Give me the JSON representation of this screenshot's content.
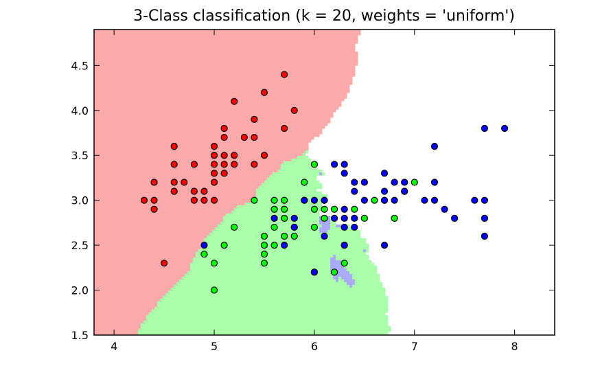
{
  "chart_data": {
    "type": "scatter",
    "title": "3-Class classification (k = 20, weights = 'uniform')",
    "xlabel": "",
    "ylabel": "",
    "xlim": [
      3.8,
      8.4
    ],
    "ylim": [
      1.5,
      4.9
    ],
    "x_ticks": [
      "4",
      "5",
      "6",
      "7",
      "8"
    ],
    "y_ticks": [
      "1.5",
      "2.0",
      "2.5",
      "3.0",
      "3.5",
      "4.0",
      "4.5"
    ],
    "grid": false,
    "legend": "none",
    "region_colors": [
      "#FFAAAA",
      "#AAFFAA",
      "#AAAAFF"
    ],
    "point_colors": [
      "#FF0000",
      "#00FF00",
      "#0000FF"
    ],
    "series": [
      {
        "color": "#FF0000",
        "points": [
          [
            4.3,
            3.0
          ],
          [
            4.4,
            2.9
          ],
          [
            4.4,
            3.0
          ],
          [
            4.4,
            3.2
          ],
          [
            4.5,
            2.3
          ],
          [
            4.6,
            3.1
          ],
          [
            4.6,
            3.2
          ],
          [
            4.6,
            3.4
          ],
          [
            4.6,
            3.6
          ],
          [
            4.7,
            3.2
          ],
          [
            4.8,
            3.0
          ],
          [
            4.8,
            3.1
          ],
          [
            4.8,
            3.4
          ],
          [
            4.9,
            3.0
          ],
          [
            4.9,
            3.1
          ],
          [
            5.0,
            3.0
          ],
          [
            5.0,
            3.2
          ],
          [
            5.0,
            3.3
          ],
          [
            5.0,
            3.4
          ],
          [
            5.0,
            3.5
          ],
          [
            5.0,
            3.6
          ],
          [
            5.1,
            3.3
          ],
          [
            5.1,
            3.4
          ],
          [
            5.1,
            3.5
          ],
          [
            5.1,
            3.7
          ],
          [
            5.1,
            3.8
          ],
          [
            5.2,
            3.4
          ],
          [
            5.2,
            3.5
          ],
          [
            5.2,
            4.1
          ],
          [
            5.3,
            3.7
          ],
          [
            5.4,
            3.4
          ],
          [
            5.4,
            3.7
          ],
          [
            5.4,
            3.9
          ],
          [
            5.5,
            3.5
          ],
          [
            5.5,
            4.2
          ],
          [
            5.7,
            3.8
          ],
          [
            5.7,
            4.4
          ],
          [
            5.8,
            4.0
          ]
        ]
      },
      {
        "color": "#00FF00",
        "points": [
          [
            4.9,
            2.4
          ],
          [
            5.0,
            2.0
          ],
          [
            5.0,
            2.3
          ],
          [
            5.1,
            2.5
          ],
          [
            5.2,
            2.7
          ],
          [
            5.4,
            3.0
          ],
          [
            5.5,
            2.3
          ],
          [
            5.5,
            2.4
          ],
          [
            5.5,
            2.5
          ],
          [
            5.5,
            2.6
          ],
          [
            5.6,
            2.5
          ],
          [
            5.6,
            2.7
          ],
          [
            5.6,
            2.9
          ],
          [
            5.6,
            3.0
          ],
          [
            5.7,
            2.6
          ],
          [
            5.7,
            2.8
          ],
          [
            5.7,
            2.9
          ],
          [
            5.7,
            3.0
          ],
          [
            5.8,
            2.6
          ],
          [
            5.8,
            2.7
          ],
          [
            5.9,
            3.0
          ],
          [
            5.9,
            3.2
          ],
          [
            6.0,
            2.2
          ],
          [
            6.0,
            2.7
          ],
          [
            6.0,
            2.9
          ],
          [
            6.0,
            3.4
          ],
          [
            6.1,
            2.8
          ],
          [
            6.1,
            2.9
          ],
          [
            6.1,
            3.0
          ],
          [
            6.2,
            2.2
          ],
          [
            6.2,
            2.9
          ],
          [
            6.3,
            2.3
          ],
          [
            6.3,
            2.5
          ],
          [
            6.4,
            2.9
          ],
          [
            6.5,
            2.8
          ],
          [
            6.6,
            3.0
          ],
          [
            6.7,
            3.0
          ],
          [
            6.8,
            2.8
          ],
          [
            6.9,
            3.1
          ],
          [
            7.0,
            3.2
          ]
        ]
      },
      {
        "color": "#0000FF",
        "points": [
          [
            4.9,
            2.5
          ],
          [
            5.6,
            2.8
          ],
          [
            5.7,
            2.5
          ],
          [
            5.8,
            2.7
          ],
          [
            5.8,
            2.8
          ],
          [
            5.9,
            3.0
          ],
          [
            6.0,
            2.2
          ],
          [
            6.0,
            3.0
          ],
          [
            6.1,
            2.6
          ],
          [
            6.1,
            3.0
          ],
          [
            6.2,
            2.8
          ],
          [
            6.2,
            3.4
          ],
          [
            6.3,
            2.5
          ],
          [
            6.3,
            2.7
          ],
          [
            6.3,
            2.8
          ],
          [
            6.3,
            2.9
          ],
          [
            6.3,
            3.3
          ],
          [
            6.3,
            3.4
          ],
          [
            6.4,
            2.7
          ],
          [
            6.4,
            2.8
          ],
          [
            6.4,
            3.1
          ],
          [
            6.4,
            3.2
          ],
          [
            6.5,
            3.0
          ],
          [
            6.5,
            3.2
          ],
          [
            6.7,
            2.5
          ],
          [
            6.7,
            3.0
          ],
          [
            6.7,
            3.1
          ],
          [
            6.7,
            3.3
          ],
          [
            6.8,
            3.0
          ],
          [
            6.8,
            3.2
          ],
          [
            6.9,
            3.1
          ],
          [
            6.9,
            3.2
          ],
          [
            7.1,
            3.0
          ],
          [
            7.2,
            3.0
          ],
          [
            7.2,
            3.2
          ],
          [
            7.2,
            3.6
          ],
          [
            7.3,
            2.9
          ],
          [
            7.4,
            2.8
          ],
          [
            7.6,
            3.0
          ],
          [
            7.7,
            2.6
          ],
          [
            7.7,
            2.8
          ],
          [
            7.7,
            3.0
          ],
          [
            7.7,
            3.8
          ],
          [
            7.9,
            3.8
          ]
        ]
      }
    ]
  }
}
